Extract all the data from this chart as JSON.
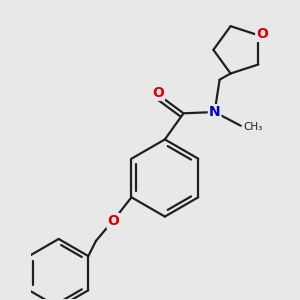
{
  "bg_color": "#e8e8e8",
  "bond_color": "#202020",
  "bond_width": 1.6,
  "atom_colors": {
    "O": "#dd0000",
    "N": "#0000cc"
  },
  "font_size_atom": 9.5
}
